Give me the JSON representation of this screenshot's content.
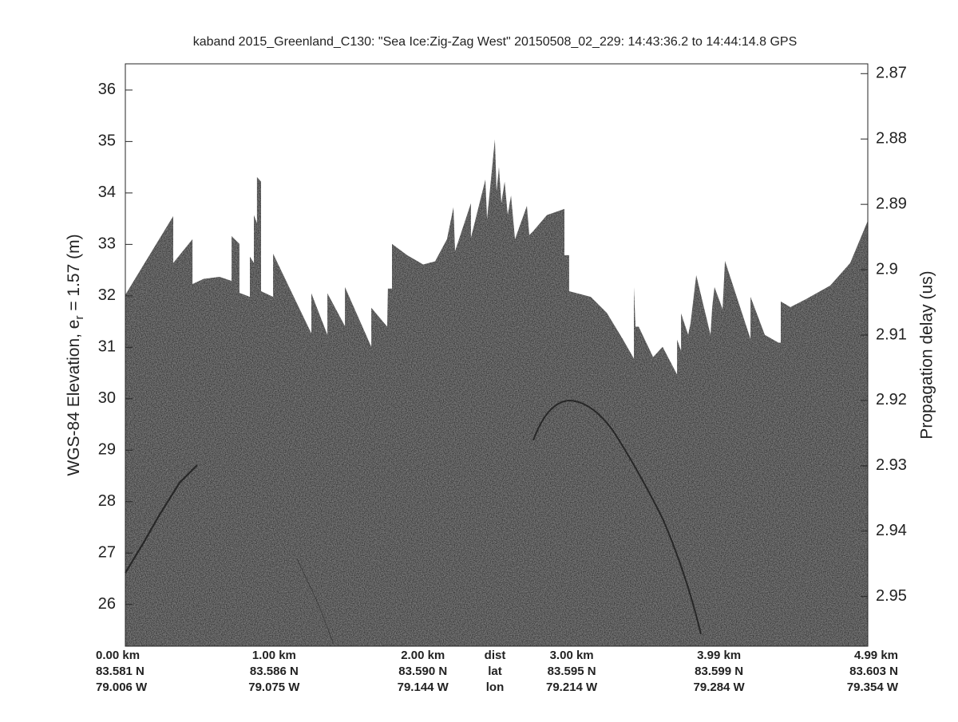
{
  "chart_data": {
    "type": "echogram",
    "title": "kaband 2015_Greenland_C130: \"Sea Ice:Zig-Zag West\"  20150508_02_229: 14:43:36.2 to 14:44:14.8 GPS",
    "ylabel": "WGS-84 Elevation, e",
    "ylabel_subscript": "r",
    "ylabel_suffix": " = 1.57 (m)",
    "y2label": "Propagation delay (us)",
    "color": "#3c3c3c",
    "xlim": [
      0,
      4.99
    ],
    "ylim": [
      25.19,
      36.51
    ],
    "yticks": [
      26,
      27,
      28,
      29,
      30,
      31,
      32,
      33,
      34,
      35,
      36
    ],
    "y2lim": [
      2.9576,
      2.8685
    ],
    "y2ticks": [
      2.87,
      2.88,
      2.89,
      2.9,
      2.91,
      2.92,
      2.93,
      2.94,
      2.95
    ],
    "xticks": [
      {
        "value": 0,
        "label": "0.00 km"
      },
      {
        "value": 1,
        "label": "1.00 km"
      },
      {
        "value": 2,
        "label": "2.00 km"
      },
      {
        "value": 3,
        "label": "3.00 km"
      },
      {
        "value": 3.99,
        "label": "3.99 km"
      },
      {
        "value": 4.99,
        "label": "4.99 km"
      }
    ],
    "lat_labels": [
      "83.581 N",
      "83.586 N",
      "83.590 N",
      "83.595 N",
      "83.599 N",
      "83.603 N"
    ],
    "lon_labels": [
      "79.006 W",
      "79.075 W",
      "79.144 W",
      "79.214 W",
      "79.284 W",
      "79.354 W"
    ],
    "row_labels": [
      "dist",
      "lat",
      "lon"
    ],
    "x": [
      0,
      0.322,
      0.322,
      0.451,
      0.451,
      0.526,
      0.633,
      0.714,
      0.714,
      0.767,
      0.767,
      0.837,
      0.837,
      0.864,
      0.864,
      0.885,
      0.885,
      0.912,
      0.912,
      0.993,
      0.993,
      1.25,
      1.25,
      1.358,
      1.358,
      1.476,
      1.476,
      1.653,
      1.653,
      1.76,
      1.765,
      1.792,
      1.792,
      1.894,
      2.002,
      2.082,
      2.162,
      2.205,
      2.216,
      2.323,
      2.323,
      2.42,
      2.431,
      2.484,
      2.495,
      2.511,
      2.527,
      2.549,
      2.57,
      2.592,
      2.619,
      2.699,
      2.715,
      2.742,
      2.833,
      2.951,
      2.951,
      2.983,
      2.983,
      3.128,
      3.236,
      3.343,
      3.418,
      3.418,
      3.429,
      3.45,
      3.547,
      3.611,
      3.708,
      3.708,
      3.735,
      3.735,
      3.783,
      3.799,
      3.837,
      3.933,
      3.944,
      3.96,
      4.014,
      4.03,
      4.202,
      4.202,
      4.298,
      4.389,
      4.405,
      4.405,
      4.47,
      4.577,
      4.738,
      4.872,
      4.99
    ],
    "values": [
      32.02,
      33.55,
      32.64,
      33.1,
      32.23,
      32.33,
      32.37,
      32.29,
      33.16,
      33.01,
      32.06,
      31.98,
      32.76,
      32.64,
      33.57,
      33.41,
      34.31,
      34.22,
      32.09,
      31.98,
      32.82,
      31.27,
      32.05,
      31.24,
      32.05,
      31.41,
      32.17,
      31.01,
      31.77,
      31.4,
      32.14,
      32.14,
      33.01,
      32.79,
      32.61,
      32.67,
      33.1,
      33.72,
      32.87,
      33.8,
      33.13,
      34.26,
      33.49,
      35.04,
      34.03,
      34.5,
      33.8,
      34.22,
      33.57,
      33.95,
      33.1,
      33.75,
      33.18,
      33.26,
      33.57,
      33.69,
      32.79,
      32.79,
      32.09,
      31.98,
      31.67,
      31.16,
      30.78,
      32.17,
      31.4,
      31.4,
      30.81,
      31.01,
      30.47,
      31.15,
      30.93,
      31.66,
      31.24,
      31.47,
      32.4,
      31.24,
      31.78,
      32.17,
      31.74,
      32.68,
      31.16,
      31.98,
      31.24,
      31.09,
      31.09,
      31.89,
      31.78,
      31.94,
      32.2,
      32.64,
      33.46
    ]
  }
}
